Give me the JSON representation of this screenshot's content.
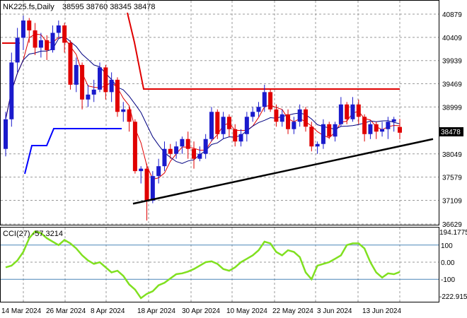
{
  "header": {
    "symbol": "NK225.fs,Daily",
    "ohlc": "38595 38760 38345 38478"
  },
  "cci": {
    "label": "CCI(27) -57.3214",
    "max_label": "194.1775",
    "min_label": "-222.915",
    "levels": [
      "100",
      "0.00",
      "-100"
    ]
  },
  "price_axis": {
    "ticks": [
      "40879",
      "40409",
      "39939",
      "39469",
      "38999",
      "38049",
      "37579",
      "37109",
      "36629"
    ],
    "current": "38478"
  },
  "dates": [
    "14 Mar 2024",
    "26 Mar 2024",
    "8 Apr 2024",
    "18 Apr 2024",
    "30 Apr 2024",
    "10 May 2024",
    "22 May 2024",
    "3 Jun 2024",
    "13 Jun 2024"
  ],
  "colors": {
    "bull": "#1a1acc",
    "bear": "#e00000",
    "ma_fast": "#e00000",
    "ma_slow": "#000080",
    "cci": "#80e020",
    "resistance": "#e00000",
    "support": "#0000ff",
    "trendline": "#000000"
  },
  "chart_data": [
    {
      "type": "candlestick",
      "title": "NK225.fs,Daily",
      "ylim": [
        36629,
        40900
      ],
      "x": [
        "14 Mar 2024",
        "26 Mar 2024",
        "8 Apr 2024",
        "18 Apr 2024",
        "30 Apr 2024",
        "10 May 2024",
        "22 May 2024",
        "3 Jun 2024",
        "13 Jun 2024"
      ],
      "last": {
        "open": 38595,
        "high": 38760,
        "low": 38345,
        "close": 38478
      }
    },
    {
      "type": "line",
      "title": "CCI(27)",
      "ylim": [
        -222.915,
        194.1775
      ],
      "levels": [
        100,
        0,
        -100
      ],
      "last": -57.3214
    }
  ]
}
